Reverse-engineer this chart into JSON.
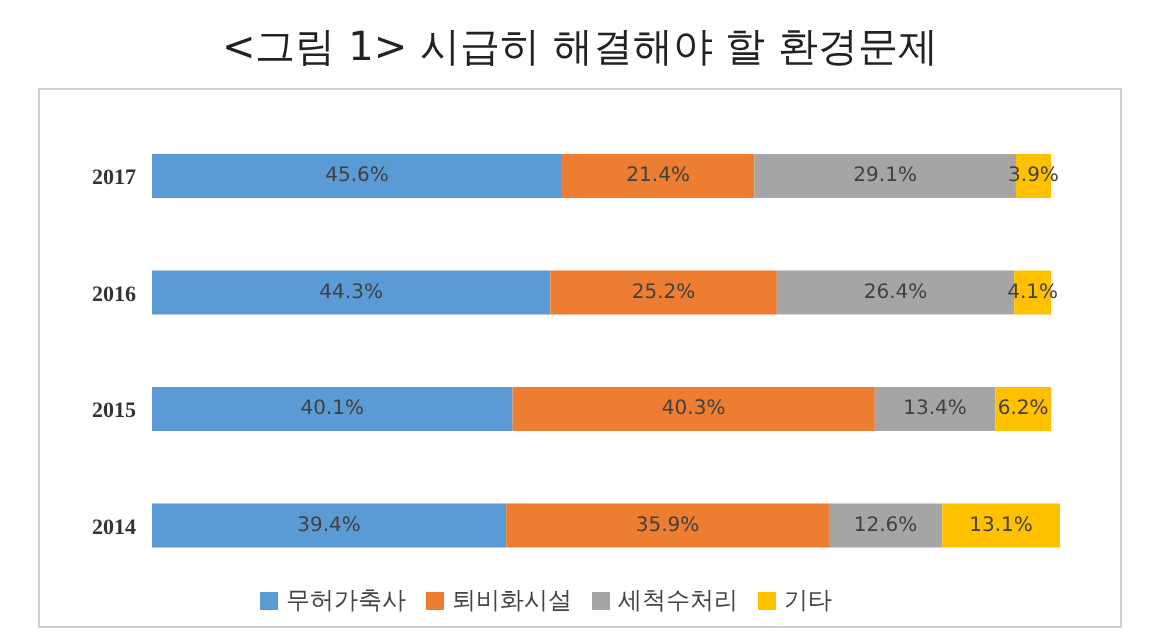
{
  "chart_data": {
    "type": "bar",
    "orientation": "horizontal",
    "stacked": true,
    "title": "<그림 1> 시급히 해결해야 할 환경문제",
    "categories": [
      "2017",
      "2016",
      "2015",
      "2014"
    ],
    "legend": "bottom",
    "grid": false,
    "series": [
      {
        "name": "무허가축사",
        "color": "#5b9bd5",
        "values": [
          45.6,
          44.3,
          40.1,
          39.4
        ],
        "value_labels": [
          "45.6%",
          "44.3%",
          "40.1%",
          "39.4%"
        ]
      },
      {
        "name": "퇴비화시설",
        "color": "#ed7d31",
        "values": [
          21.4,
          25.2,
          40.3,
          35.9
        ],
        "value_labels": [
          "21.4%",
          "25.2%",
          "40.3%",
          "35.9%"
        ]
      },
      {
        "name": "세척수처리",
        "color": "#a5a5a5",
        "values": [
          29.1,
          26.4,
          13.4,
          12.6
        ],
        "value_labels": [
          "29.1%",
          "26.4%",
          "13.4%",
          "12.6%"
        ]
      },
      {
        "name": "기타",
        "color": "#ffc000",
        "values": [
          3.9,
          4.1,
          6.2,
          13.1
        ],
        "value_labels": [
          "3.9%",
          "4.1%",
          "6.2%",
          "13.1%"
        ]
      }
    ]
  }
}
